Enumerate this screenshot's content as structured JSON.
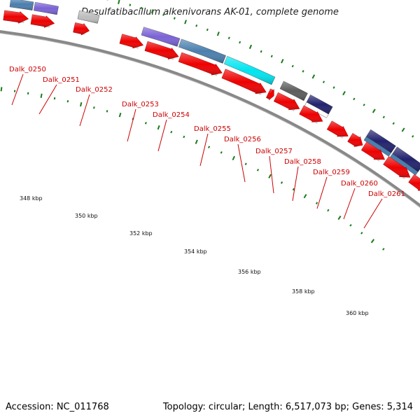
{
  "title": "Desulfatibacillum alkenivorans AK-01, complete genome",
  "footer": {
    "accession": "Accession: NC_011768",
    "summary": "Topology: circular; Length: 6,517,073 bp; Genes: 5,314"
  },
  "colors": {
    "gene_label": "#cc0000",
    "cds_arrow": "#ee0000",
    "tick": "#1a7a1a",
    "backbone": "#888888",
    "feature_steelblue": "#4a7fae",
    "feature_purple": "#7a63d6",
    "feature_gray": "#bdbdbd",
    "feature_cyan": "#00e5f0",
    "feature_darkgray": "#5c5c5c",
    "feature_navy": "#22226e"
  },
  "gene_labels": [
    "Dalk_0250",
    "Dalk_0251",
    "Dalk_0252",
    "Dalk_0253",
    "Dalk_0254",
    "Dalk_0255",
    "Dalk_0256",
    "Dalk_0257",
    "Dalk_0258",
    "Dalk_0259",
    "Dalk_0260",
    "Dalk_0261"
  ],
  "scale_labels": [
    "348 kbp",
    "350 kbp",
    "352 kbp",
    "354 kbp",
    "356 kbp",
    "358 kbp",
    "360 kbp"
  ]
}
